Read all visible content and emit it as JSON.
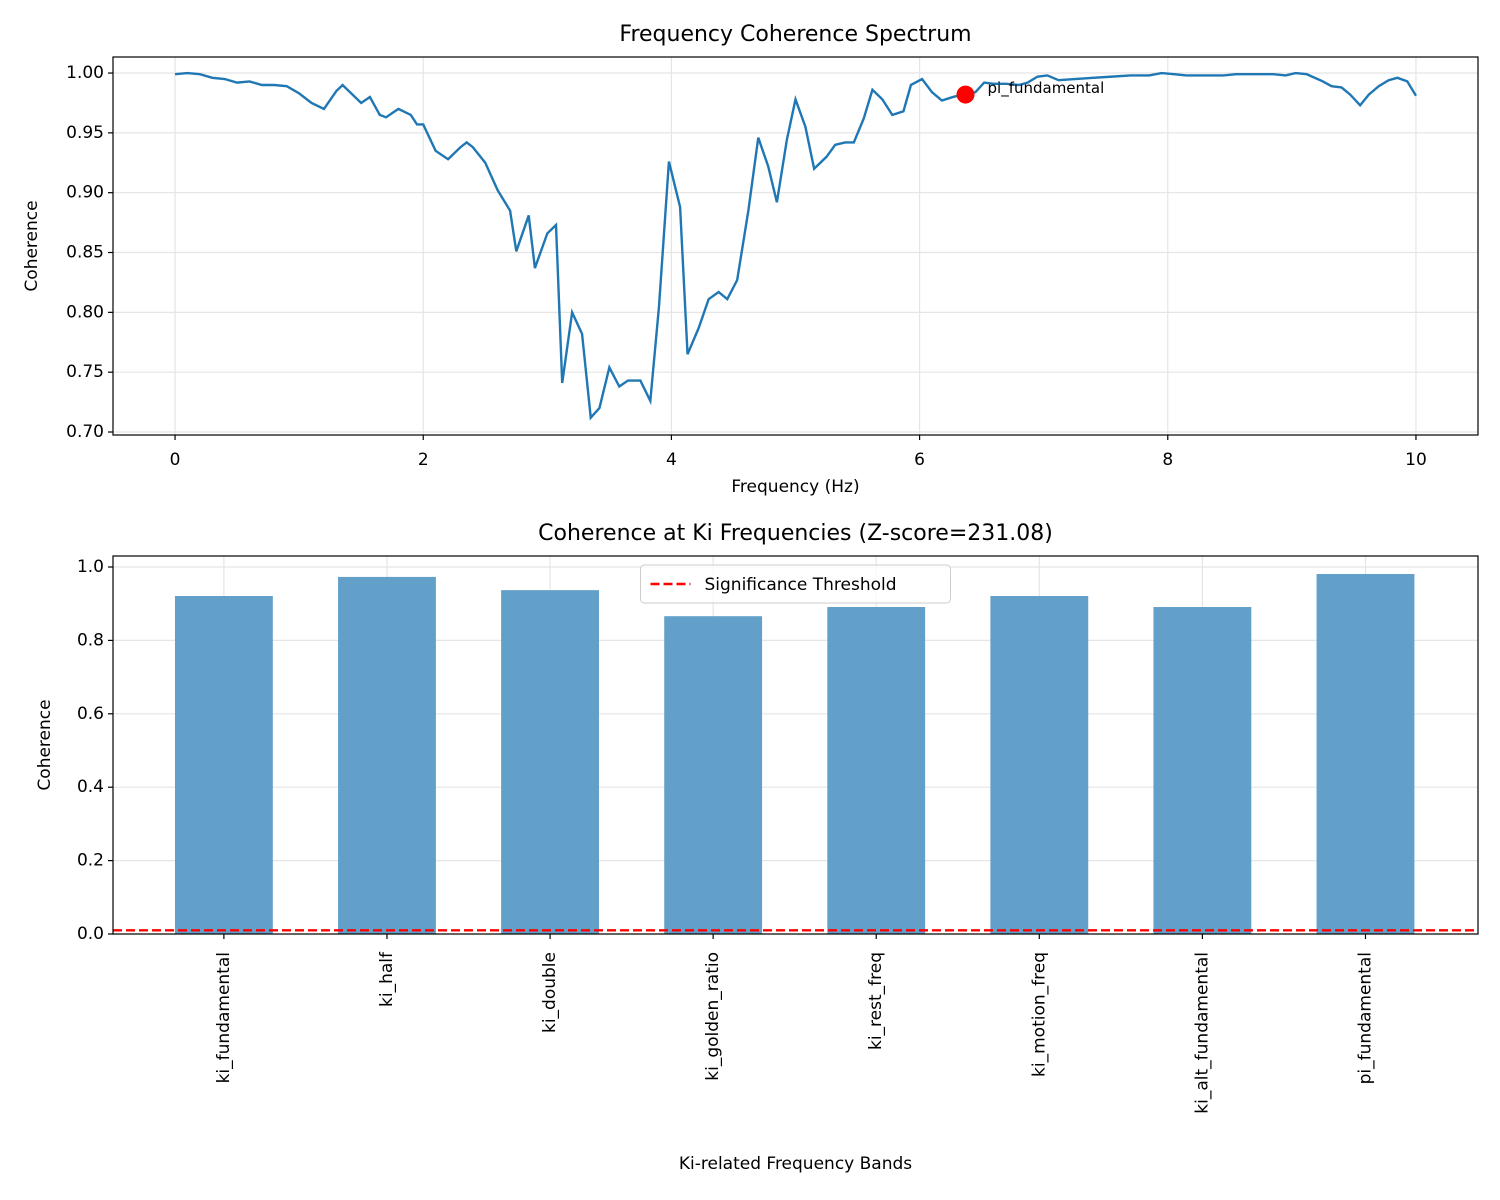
{
  "chart_data": [
    {
      "type": "line",
      "title": "Frequency Coherence Spectrum",
      "x_label": "Frequency (Hz)",
      "y_label": "Coherence",
      "x": [
        0,
        0.1,
        0.2,
        0.3,
        0.4,
        0.5,
        0.6,
        0.7,
        0.8,
        0.9,
        1.0,
        1.1,
        1.2,
        1.3,
        1.35,
        1.4,
        1.5,
        1.57,
        1.65,
        1.7,
        1.8,
        1.9,
        1.95,
        2.0,
        2.1,
        2.2,
        2.3,
        2.35,
        2.4,
        2.5,
        2.6,
        2.7,
        2.75,
        2.85,
        2.9,
        3.0,
        3.07,
        3.12,
        3.2,
        3.28,
        3.35,
        3.42,
        3.5,
        3.58,
        3.65,
        3.75,
        3.83,
        3.9,
        3.98,
        4.07,
        4.13,
        4.22,
        4.3,
        4.38,
        4.45,
        4.53,
        4.62,
        4.7,
        4.78,
        4.85,
        4.93,
        5.0,
        5.08,
        5.15,
        5.25,
        5.32,
        5.4,
        5.47,
        5.55,
        5.62,
        5.7,
        5.78,
        5.87,
        5.93,
        6.02,
        6.1,
        6.18,
        6.27,
        6.35,
        6.45,
        6.52,
        6.6,
        6.7,
        6.8,
        6.87,
        6.95,
        7.03,
        7.12,
        7.25,
        7.4,
        7.55,
        7.7,
        7.85,
        7.95,
        8.05,
        8.15,
        8.3,
        8.45,
        8.55,
        8.7,
        8.85,
        8.95,
        9.03,
        9.12,
        9.25,
        9.32,
        9.4,
        9.47,
        9.55,
        9.62,
        9.7,
        9.78,
        9.85,
        9.93,
        10.0
      ],
      "series": [
        {
          "color": "#1f77b4",
          "values": [
            0.999,
            1.0,
            0.999,
            0.996,
            0.995,
            0.992,
            0.993,
            0.99,
            0.99,
            0.989,
            0.983,
            0.975,
            0.97,
            0.985,
            0.99,
            0.985,
            0.975,
            0.98,
            0.965,
            0.963,
            0.97,
            0.965,
            0.957,
            0.957,
            0.935,
            0.928,
            0.938,
            0.942,
            0.938,
            0.925,
            0.902,
            0.885,
            0.851,
            0.881,
            0.837,
            0.866,
            0.873,
            0.741,
            0.8,
            0.782,
            0.712,
            0.72,
            0.754,
            0.738,
            0.743,
            0.743,
            0.726,
            0.805,
            0.926,
            0.888,
            0.765,
            0.787,
            0.811,
            0.817,
            0.811,
            0.827,
            0.885,
            0.946,
            0.922,
            0.892,
            0.944,
            0.978,
            0.955,
            0.92,
            0.93,
            0.94,
            0.942,
            0.942,
            0.962,
            0.986,
            0.978,
            0.965,
            0.968,
            0.99,
            0.995,
            0.984,
            0.977,
            0.98,
            0.982,
            0.984,
            0.992,
            0.991,
            0.991,
            0.99,
            0.992,
            0.997,
            0.998,
            0.994,
            0.995,
            0.996,
            0.997,
            0.998,
            0.998,
            1.0,
            0.999,
            0.998,
            0.998,
            0.998,
            0.999,
            0.999,
            0.999,
            0.998,
            1.0,
            0.999,
            0.993,
            0.989,
            0.988,
            0.982,
            0.973,
            0.982,
            0.989,
            0.994,
            0.996,
            0.993,
            0.981
          ]
        }
      ],
      "annotations": [
        {
          "text": "pi_fundamental",
          "x": 6.37,
          "y": 0.982,
          "color": "red"
        }
      ],
      "xlim": [
        -0.5,
        10.5
      ],
      "ylim": [
        0.6975,
        1.0134
      ],
      "xticks": [
        0,
        2,
        4,
        6,
        8,
        10
      ],
      "yticks": [
        {
          "value": 0.7,
          "label": "0.70"
        },
        0.75,
        {
          "value": 0.8,
          "label": "0.80"
        },
        0.85,
        {
          "value": 0.9,
          "label": "0.90"
        },
        0.95,
        {
          "value": 1.0,
          "label": "1.00"
        }
      ],
      "grid": true
    },
    {
      "type": "bar",
      "title": "Coherence at Ki Frequencies (Z-score=231.08)",
      "x_label": "Ki-related Frequency Bands",
      "y_label": "Coherence",
      "categories": [
        "ki_fundamental",
        "ki_half",
        "ki_double",
        "ki_golden_ratio",
        "ki_rest_freq",
        "ki_motion_freq",
        "ki_alt_fundamental",
        "pi_fundamental"
      ],
      "values": [
        0.921,
        0.973,
        0.937,
        0.866,
        0.891,
        0.921,
        0.891,
        0.981
      ],
      "color": "#62a0ca",
      "threshold": {
        "name": "Significance Threshold",
        "value": 0.01,
        "color": "red"
      },
      "legend": "upper center",
      "ylim": [
        0,
        1.03
      ],
      "yticks": [
        {
          "value": 0,
          "label": "0.0"
        },
        0.2,
        0.4,
        0.6,
        0.8,
        {
          "value": 1,
          "label": "1.0"
        }
      ],
      "grid": true
    }
  ]
}
